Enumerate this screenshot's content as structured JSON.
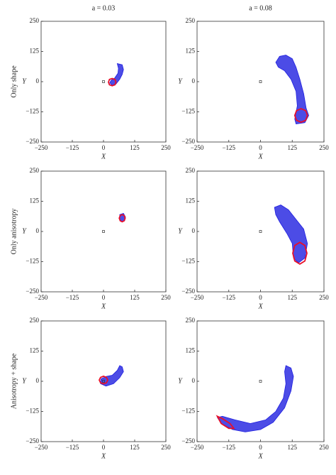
{
  "chart_data": [
    {
      "type": "line",
      "title": "a = 0.03",
      "row_label": "Only shape",
      "xlabel": "X",
      "ylabel": "Y",
      "xlim": [
        -250,
        250
      ],
      "ylim": [
        -250,
        250
      ],
      "xticks": [
        {
          "value": -250,
          "label": "−250"
        },
        {
          "value": -125,
          "label": "−125"
        },
        0,
        125,
        250
      ],
      "yticks": [
        {
          "value": -250,
          "label": "−250"
        },
        {
          "value": -125,
          "label": "−125"
        },
        0,
        125,
        250
      ],
      "marker": {
        "x": 0,
        "y": 0
      },
      "series": [
        {
          "color": "#1f1fe0",
          "x": [
            55,
            75,
            80,
            75,
            65,
            50,
            35,
            25,
            30,
            45,
            58,
            60
          ],
          "y": [
            75,
            70,
            50,
            30,
            10,
            -10,
            -15,
            -5,
            5,
            15,
            35,
            55
          ]
        },
        {
          "color": "#e8102a",
          "x": [
            50,
            46,
            35,
            24,
            20,
            24,
            35,
            46
          ],
          "y": [
            -2,
            9,
            13,
            9,
            -2,
            -13,
            -17,
            -13
          ]
        }
      ]
    },
    {
      "type": "line",
      "title": "a = 0.08",
      "xlabel": "X",
      "ylabel": "Y",
      "xlim": [
        -250,
        250
      ],
      "ylim": [
        -250,
        250
      ],
      "xticks": [
        {
          "value": -250,
          "label": "−250"
        },
        {
          "value": -125,
          "label": "−125"
        },
        0,
        125,
        250
      ],
      "yticks": [
        {
          "value": -250,
          "label": "−250"
        },
        {
          "value": -125,
          "label": "−125"
        },
        0,
        125,
        250
      ],
      "marker": {
        "x": 0,
        "y": 0
      },
      "series": [
        {
          "color": "#1f1fe0",
          "x": [
            60,
            75,
            100,
            125,
            140,
            155,
            170,
            180,
            190,
            175,
            140,
            135,
            145,
            140,
            120,
            95,
            70
          ],
          "y": [
            80,
            105,
            110,
            95,
            60,
            10,
            -50,
            -110,
            -140,
            -170,
            -175,
            -155,
            -100,
            -40,
            10,
            45,
            60
          ]
        },
        {
          "color": "#e8102a",
          "x": [
            185,
            178,
            160,
            142,
            135,
            142,
            160,
            178
          ],
          "y": [
            -140,
            -120,
            -112,
            -120,
            -140,
            -160,
            -168,
            -160
          ]
        }
      ]
    },
    {
      "type": "line",
      "row_label": "Only anisotropy",
      "xlabel": "X",
      "ylabel": "Y",
      "xlim": [
        -250,
        250
      ],
      "ylim": [
        -250,
        250
      ],
      "xticks": [
        {
          "value": -250,
          "label": "−250"
        },
        {
          "value": -125,
          "label": "−125"
        },
        0,
        125,
        250
      ],
      "yticks": [
        {
          "value": -250,
          "label": "−250"
        },
        {
          "value": -125,
          "label": "−125"
        },
        0,
        125,
        250
      ],
      "marker": {
        "x": 0,
        "y": 0
      },
      "series": [
        {
          "color": "#1f1fe0",
          "x": [
            65,
            80,
            88,
            85,
            75,
            65
          ],
          "y": [
            70,
            75,
            60,
            45,
            40,
            50
          ]
        },
        {
          "color": "#e8102a",
          "x": [
            87,
            83,
            75,
            67,
            63,
            67,
            75,
            83
          ],
          "y": [
            55,
            66,
            70,
            66,
            55,
            44,
            40,
            44
          ]
        }
      ]
    },
    {
      "type": "line",
      "xlabel": "X",
      "ylabel": "Y",
      "xlim": [
        -250,
        250
      ],
      "ylim": [
        -250,
        250
      ],
      "xticks": [
        {
          "value": -250,
          "label": "−250"
        },
        {
          "value": -125,
          "label": "−125"
        },
        0,
        125,
        250
      ],
      "yticks": [
        {
          "value": -250,
          "label": "−250"
        },
        {
          "value": -125,
          "label": "−125"
        },
        0,
        125,
        250
      ],
      "marker": {
        "x": 0,
        "y": 0
      },
      "series": [
        {
          "color": "#1f1fe0",
          "x": [
            55,
            80,
            110,
            140,
            170,
            185,
            175,
            150,
            130,
            125,
            105,
            75,
            60
          ],
          "y": [
            100,
            110,
            90,
            50,
            10,
            -50,
            -110,
            -130,
            -110,
            -50,
            -10,
            40,
            70
          ]
        },
        {
          "color": "#e8102a",
          "x": [
            183,
            175,
            155,
            135,
            127,
            135,
            155,
            175
          ],
          "y": [
            -90,
            -58,
            -45,
            -58,
            -90,
            -122,
            -135,
            -122
          ]
        }
      ]
    },
    {
      "type": "line",
      "row_label": "Anisotropy + shape",
      "xlabel": "X",
      "ylabel": "Y",
      "xlim": [
        -250,
        250
      ],
      "ylim": [
        -250,
        250
      ],
      "xticks": [
        {
          "value": -250,
          "label": "−250"
        },
        {
          "value": -125,
          "label": "−125"
        },
        0,
        125,
        250
      ],
      "yticks": [
        {
          "value": -250,
          "label": "−250"
        },
        {
          "value": -125,
          "label": "−125"
        },
        0,
        125,
        250
      ],
      "marker": {
        "x": 0,
        "y": 0
      },
      "series": [
        {
          "color": "#1f1fe0",
          "x": [
            -10,
            10,
            35,
            55,
            65,
            75,
            80,
            65,
            40,
            10,
            -12
          ],
          "y": [
            10,
            20,
            25,
            45,
            65,
            60,
            40,
            15,
            -10,
            -20,
            -10
          ]
        },
        {
          "color": "#e8102a",
          "x": [
            17,
            12,
            0,
            -12,
            -17,
            -12,
            0,
            12
          ],
          "y": [
            5,
            16,
            21,
            16,
            5,
            -6,
            -11,
            -6
          ]
        }
      ]
    },
    {
      "type": "line",
      "xlabel": "X",
      "ylabel": "Y",
      "xlim": [
        -250,
        250
      ],
      "ylim": [
        -250,
        250
      ],
      "xticks": [
        {
          "value": -250,
          "label": "−250"
        },
        {
          "value": -125,
          "label": "−125"
        },
        0,
        125,
        250
      ],
      "yticks": [
        {
          "value": -250,
          "label": "−250"
        },
        {
          "value": -125,
          "label": "−125"
        },
        0,
        125,
        250
      ],
      "marker": {
        "x": 0,
        "y": 0
      },
      "series": [
        {
          "color": "#1f1fe0",
          "x": [
            100,
            120,
            130,
            120,
            95,
            50,
            0,
            -60,
            -110,
            -155,
            -170,
            -150,
            -100,
            -40,
            20,
            60,
            90,
            100,
            95
          ],
          "y": [
            65,
            55,
            20,
            -40,
            -110,
            -170,
            -200,
            -210,
            -200,
            -175,
            -150,
            -145,
            -160,
            -175,
            -160,
            -125,
            -70,
            -10,
            40
          ]
        },
        {
          "color": "#e8102a",
          "x": [
            -170,
            -150,
            -120,
            -105,
            -125,
            -155
          ],
          "y": [
            -145,
            -155,
            -175,
            -195,
            -195,
            -175
          ]
        }
      ]
    }
  ]
}
